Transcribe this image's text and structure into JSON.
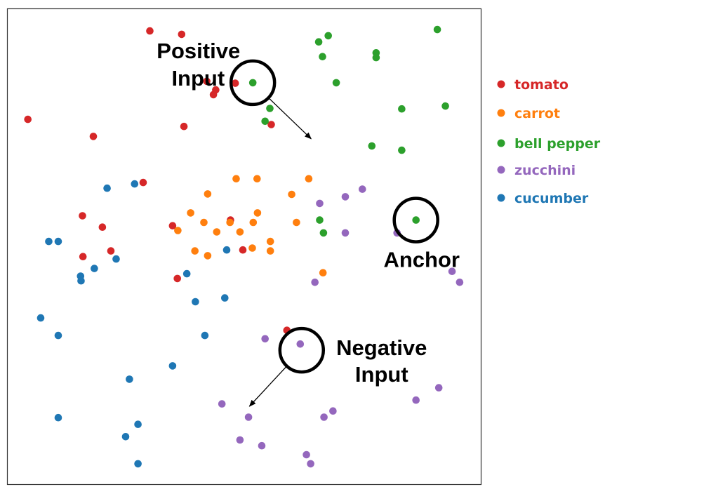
{
  "chart_data": {
    "type": "scatter",
    "title": "",
    "xlabel": "",
    "ylabel": "",
    "xlim": [
      0,
      100
    ],
    "ylim": [
      0,
      100
    ],
    "grid": false,
    "axis_ticks": false,
    "legend_placement": "right",
    "series": [
      {
        "name": "tomato",
        "color": "#d62728",
        "points": [
          [
            30.1,
            95.4
          ],
          [
            36.8,
            94.7
          ],
          [
            4.4,
            76.8
          ],
          [
            18.2,
            73.2
          ],
          [
            37.3,
            75.3
          ],
          [
            42.1,
            84.8
          ],
          [
            43.5,
            82.0
          ],
          [
            44.0,
            83.0
          ],
          [
            48.1,
            84.4
          ],
          [
            55.7,
            75.7
          ],
          [
            28.7,
            63.5
          ],
          [
            15.9,
            56.5
          ],
          [
            20.1,
            54.1
          ],
          [
            16.0,
            47.9
          ],
          [
            21.9,
            49.1
          ],
          [
            34.9,
            54.4
          ],
          [
            47.1,
            55.6
          ],
          [
            49.7,
            49.3
          ],
          [
            35.9,
            43.3
          ],
          [
            59.0,
            32.4
          ]
        ]
      },
      {
        "name": "carrot",
        "color": "#ff7f0e",
        "points": [
          [
            48.3,
            64.3
          ],
          [
            52.7,
            64.3
          ],
          [
            63.6,
            64.3
          ],
          [
            42.3,
            61.1
          ],
          [
            60.0,
            61.0
          ],
          [
            38.7,
            57.1
          ],
          [
            52.8,
            57.1
          ],
          [
            41.5,
            55.1
          ],
          [
            47.0,
            55.1
          ],
          [
            51.9,
            55.1
          ],
          [
            61.0,
            55.1
          ],
          [
            36.0,
            53.4
          ],
          [
            44.2,
            53.1
          ],
          [
            49.1,
            53.1
          ],
          [
            55.5,
            51.1
          ],
          [
            51.7,
            49.7
          ],
          [
            39.6,
            49.1
          ],
          [
            55.5,
            49.1
          ],
          [
            42.3,
            48.1
          ],
          [
            66.6,
            44.5
          ]
        ]
      },
      {
        "name": "bell pepper",
        "color": "#2ca02c",
        "points": [
          [
            67.7,
            94.4
          ],
          [
            65.7,
            93.1
          ],
          [
            90.7,
            95.7
          ],
          [
            77.8,
            90.8
          ],
          [
            77.8,
            89.8
          ],
          [
            66.5,
            90.0
          ],
          [
            51.8,
            84.5
          ],
          [
            69.4,
            84.5
          ],
          [
            55.4,
            79.1
          ],
          [
            83.2,
            79.0
          ],
          [
            92.4,
            79.6
          ],
          [
            54.4,
            76.4
          ],
          [
            76.9,
            71.2
          ],
          [
            83.2,
            70.3
          ],
          [
            65.9,
            55.6
          ],
          [
            66.7,
            52.9
          ],
          [
            86.2,
            55.6
          ]
        ]
      },
      {
        "name": "zucchini",
        "color": "#9467bd",
        "points": [
          [
            74.9,
            62.1
          ],
          [
            71.3,
            60.5
          ],
          [
            65.9,
            59.1
          ],
          [
            71.3,
            52.9
          ],
          [
            82.2,
            52.9
          ],
          [
            93.8,
            44.8
          ],
          [
            95.4,
            42.5
          ],
          [
            64.9,
            42.5
          ],
          [
            54.4,
            30.6
          ],
          [
            61.8,
            29.5
          ],
          [
            91.0,
            20.3
          ],
          [
            86.2,
            17.7
          ],
          [
            45.3,
            16.9
          ],
          [
            50.9,
            14.1
          ],
          [
            68.7,
            15.4
          ],
          [
            66.8,
            14.1
          ],
          [
            49.1,
            9.3
          ],
          [
            53.7,
            8.1
          ],
          [
            63.1,
            6.2
          ],
          [
            64.0,
            4.3
          ]
        ]
      },
      {
        "name": "cucumber",
        "color": "#1f77b4",
        "points": [
          [
            21.1,
            62.3
          ],
          [
            26.9,
            63.2
          ],
          [
            8.8,
            51.1
          ],
          [
            10.8,
            51.1
          ],
          [
            46.3,
            49.3
          ],
          [
            23.0,
            47.4
          ],
          [
            18.4,
            45.4
          ],
          [
            15.5,
            43.8
          ],
          [
            37.9,
            44.3
          ],
          [
            15.6,
            42.8
          ],
          [
            45.9,
            39.2
          ],
          [
            39.7,
            38.4
          ],
          [
            7.1,
            35.0
          ],
          [
            10.8,
            31.3
          ],
          [
            41.7,
            31.3
          ],
          [
            34.9,
            24.9
          ],
          [
            25.8,
            22.1
          ],
          [
            10.8,
            14.0
          ],
          [
            27.6,
            12.6
          ],
          [
            25.0,
            10.0
          ],
          [
            27.6,
            4.3
          ]
        ]
      }
    ],
    "annotations": [
      {
        "label_lines": [
          "Positive",
          "Input"
        ],
        "point": [
          51.8,
          84.5
        ],
        "arrow_to": [
          64.1,
          72.7
        ]
      },
      {
        "label_lines": [
          "Anchor"
        ],
        "point": [
          86.2,
          55.6
        ]
      },
      {
        "label_lines": [
          "Negative",
          "Input"
        ],
        "point": [
          62.1,
          28.2
        ],
        "arrow_to": [
          51.1,
          16.4
        ]
      }
    ]
  }
}
